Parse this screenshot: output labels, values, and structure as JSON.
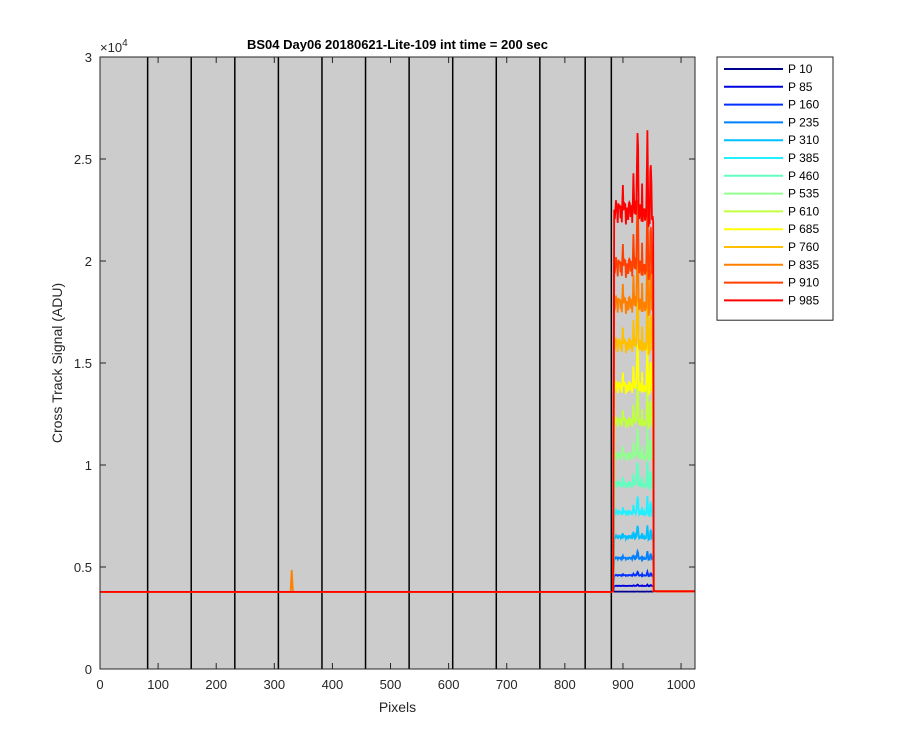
{
  "chart_data": {
    "type": "line",
    "title": "BS04 Day06 20180621-Lite-109 int time = 200 sec",
    "xlabel": "Pixels",
    "ylabel": "Cross Track Signal (ADU)",
    "xlim": [
      0,
      1024
    ],
    "ylim": [
      0,
      30000
    ],
    "xticks": [
      0,
      100,
      200,
      300,
      400,
      500,
      600,
      700,
      800,
      900,
      1000
    ],
    "xtick_labels": [
      "0",
      "100",
      "200",
      "300",
      "400",
      "500",
      "600",
      "700",
      "800",
      "900",
      "1000"
    ],
    "yticks": [
      0,
      5000,
      10000,
      15000,
      20000,
      25000,
      30000
    ],
    "ytick_labels": [
      "0",
      "0.5",
      "1",
      "1.5",
      "2",
      "2.5",
      "3"
    ],
    "y_multiplier_base": "×10",
    "y_multiplier_exp": "4",
    "plot_background": "#cccccc",
    "vertical_lines_x": [
      82,
      157,
      232,
      307,
      382,
      457,
      532,
      607,
      682,
      757,
      835,
      880
    ],
    "baseline": 3780,
    "spike": {
      "x": 330,
      "peak": 4850
    },
    "signal_region": [
      885,
      952
    ],
    "legend_location": "outside-top-right",
    "series": [
      {
        "name": "P 10",
        "color": "#00008f",
        "peak": 3800
      },
      {
        "name": "P 85",
        "color": "#0000df",
        "peak": 4150
      },
      {
        "name": "P 160",
        "color": "#0030ff",
        "peak": 4800
      },
      {
        "name": "P 235",
        "color": "#0080ff",
        "peak": 5850
      },
      {
        "name": "P 310",
        "color": "#00c0ff",
        "peak": 7150
      },
      {
        "name": "P 385",
        "color": "#20f0ff",
        "peak": 8650
      },
      {
        "name": "P 460",
        "color": "#60ffc0",
        "peak": 10400
      },
      {
        "name": "P 535",
        "color": "#90ff90",
        "peak": 12150
      },
      {
        "name": "P 610",
        "color": "#c0ff40",
        "peak": 14250
      },
      {
        "name": "P 685",
        "color": "#ffff00",
        "peak": 16400
      },
      {
        "name": "P 760",
        "color": "#ffc000",
        "peak": 19000
      },
      {
        "name": "P 835",
        "color": "#ff8000",
        "peak": 21500
      },
      {
        "name": "P 910",
        "color": "#ff4000",
        "peak": 23800
      },
      {
        "name": "P 985",
        "color": "#ff0000",
        "peak": 27200
      }
    ]
  }
}
